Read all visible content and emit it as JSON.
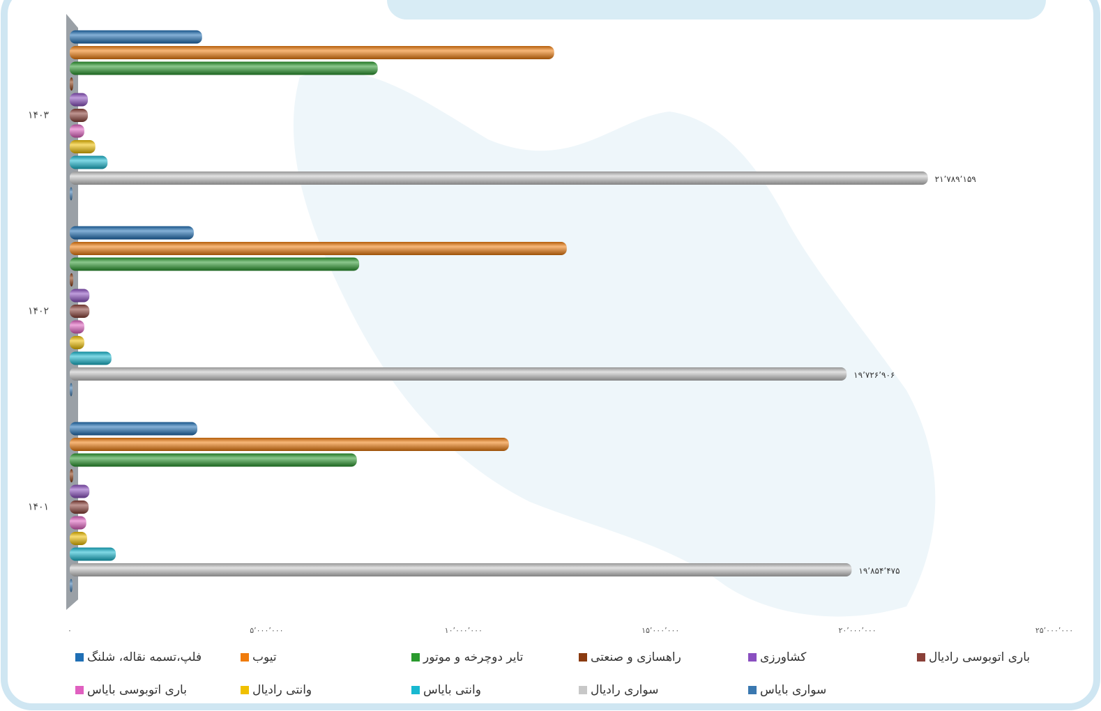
{
  "chart_data": {
    "type": "bar",
    "orientation": "horizontal",
    "categories": [
      "۱۴۰۳",
      "۱۴۰۲",
      "۱۴۰۱"
    ],
    "xlim": [
      0,
      25000000
    ],
    "xticks": [
      {
        "value": 0,
        "label": "۰"
      },
      {
        "value": 5000000,
        "label": "۵٬۰۰۰٬۰۰۰"
      },
      {
        "value": 10000000,
        "label": "۱۰٬۰۰۰٬۰۰۰"
      },
      {
        "value": 15000000,
        "label": "۱۵٬۰۰۰٬۰۰۰"
      },
      {
        "value": 20000000,
        "label": "۲۰٬۰۰۰٬۰۰۰"
      },
      {
        "value": 25000000,
        "label": "۲۵٬۰۰۰٬۰۰۰"
      }
    ],
    "grid": false,
    "legend": "bottom",
    "series": [
      {
        "name": "فلپ،تسمه نقاله، شلنگ",
        "color": "#1f6fb5",
        "values": [
          3360000,
          3150000,
          3240000
        ]
      },
      {
        "name": "تیوب",
        "color": "#f07c0c",
        "values": [
          12300000,
          12620000,
          11150000
        ]
      },
      {
        "name": "تایر دوچرخه و موتور",
        "color": "#2a9a2e",
        "values": [
          7820000,
          7350000,
          7290000
        ]
      },
      {
        "name": "راهسازی و صنعتی",
        "color": "#8a3a10",
        "values": [
          90000,
          90000,
          90000
        ]
      },
      {
        "name": "کشاورزی",
        "color": "#8a4fc0",
        "values": [
          460000,
          500000,
          500000
        ]
      },
      {
        "name": "باری اتوبوسی رادیال",
        "color": "#8a4038",
        "values": [
          460000,
          500000,
          480000
        ]
      },
      {
        "name": "باری اتوبوسی بایاس",
        "color": "#e060c0",
        "values": [
          370000,
          370000,
          420000
        ]
      },
      {
        "name": "وانتی رادیال",
        "color": "#f0c000",
        "values": [
          650000,
          370000,
          440000
        ]
      },
      {
        "name": "وانتی بایاس",
        "color": "#18b8d0",
        "values": [
          960000,
          1060000,
          1170000
        ]
      },
      {
        "name": "سواری رادیال",
        "color": "#c8c8c8",
        "values": [
          21789159,
          19726906,
          19854475
        ],
        "value_labels": [
          "۲۱٬۷۸۹٬۱۵۹",
          "۱۹٬۷۲۶٬۹۰۶",
          "۱۹٬۸۵۴٬۴۷۵"
        ]
      },
      {
        "name": "سواری بایاس",
        "color": "#3a78b0",
        "values": [
          50000,
          50000,
          50000
        ]
      }
    ]
  }
}
